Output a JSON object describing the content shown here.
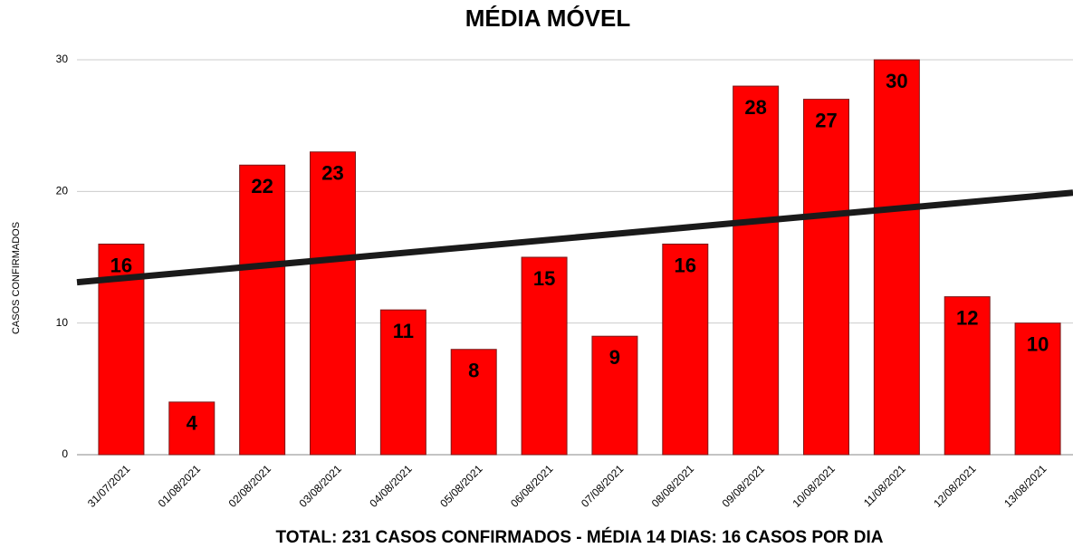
{
  "chart_data": {
    "type": "bar",
    "title": "MÉDIA MÓVEL",
    "y_label": "CASOS CONFIRMADOS",
    "footer": "TOTAL: 231 CASOS CONFIRMADOS - MÉDIA 14 DIAS: 16 CASOS POR DIA",
    "categories": [
      "31/07/2021",
      "01/08/2021",
      "02/08/2021",
      "03/08/2021",
      "04/08/2021",
      "05/08/2021",
      "06/08/2021",
      "07/08/2021",
      "08/08/2021",
      "09/08/2021",
      "10/08/2021",
      "11/08/2021",
      "12/08/2021",
      "13/08/2021"
    ],
    "values": [
      16,
      4,
      22,
      23,
      11,
      8,
      15,
      9,
      16,
      28,
      27,
      30,
      12,
      10
    ],
    "color": "#ff0000",
    "trendline": {
      "color": "#1a1a1a",
      "values": [
        13.1,
        19.9
      ]
    },
    "ylim": [
      0,
      30
    ],
    "yticks": [
      0,
      10,
      20,
      30
    ],
    "grid": true
  }
}
